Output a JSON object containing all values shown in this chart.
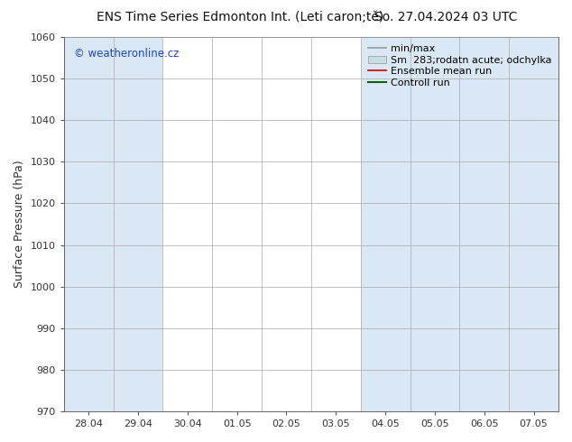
{
  "title_main": "ENS Time Series Edmonton Int. (Leti caron;tě)",
  "title_date": "So. 27.04.2024 03 UTC",
  "ylabel": "Surface Pressure (hPa)",
  "ylim": [
    970,
    1060
  ],
  "yticks": [
    970,
    980,
    990,
    1000,
    1010,
    1020,
    1030,
    1040,
    1050,
    1060
  ],
  "xlabels": [
    "28.04",
    "29.04",
    "30.04",
    "01.05",
    "02.05",
    "03.05",
    "04.05",
    "05.05",
    "06.05",
    "07.05"
  ],
  "blue_band_indices": [
    0,
    1,
    6,
    7,
    8,
    9
  ],
  "plot_bg": "#ffffff",
  "band_color": "#dae8f5",
  "grid_color": "#aaaaaa",
  "watermark": "© weatheronline.cz",
  "watermark_color": "#1a44cc",
  "title_fontsize": 10,
  "axis_label_fontsize": 9,
  "tick_fontsize": 8,
  "legend_fontsize": 8,
  "legend_labels": [
    "min/max",
    "Sm  283;rodatn acute; odchylka",
    "Ensemble mean run",
    "Controll run"
  ],
  "legend_line_colors": [
    "#999999",
    "#bbccdd",
    "#cc0000",
    "#006600"
  ],
  "legend_patch_colors": [
    "#999999",
    "#c8dce8",
    null,
    null
  ]
}
